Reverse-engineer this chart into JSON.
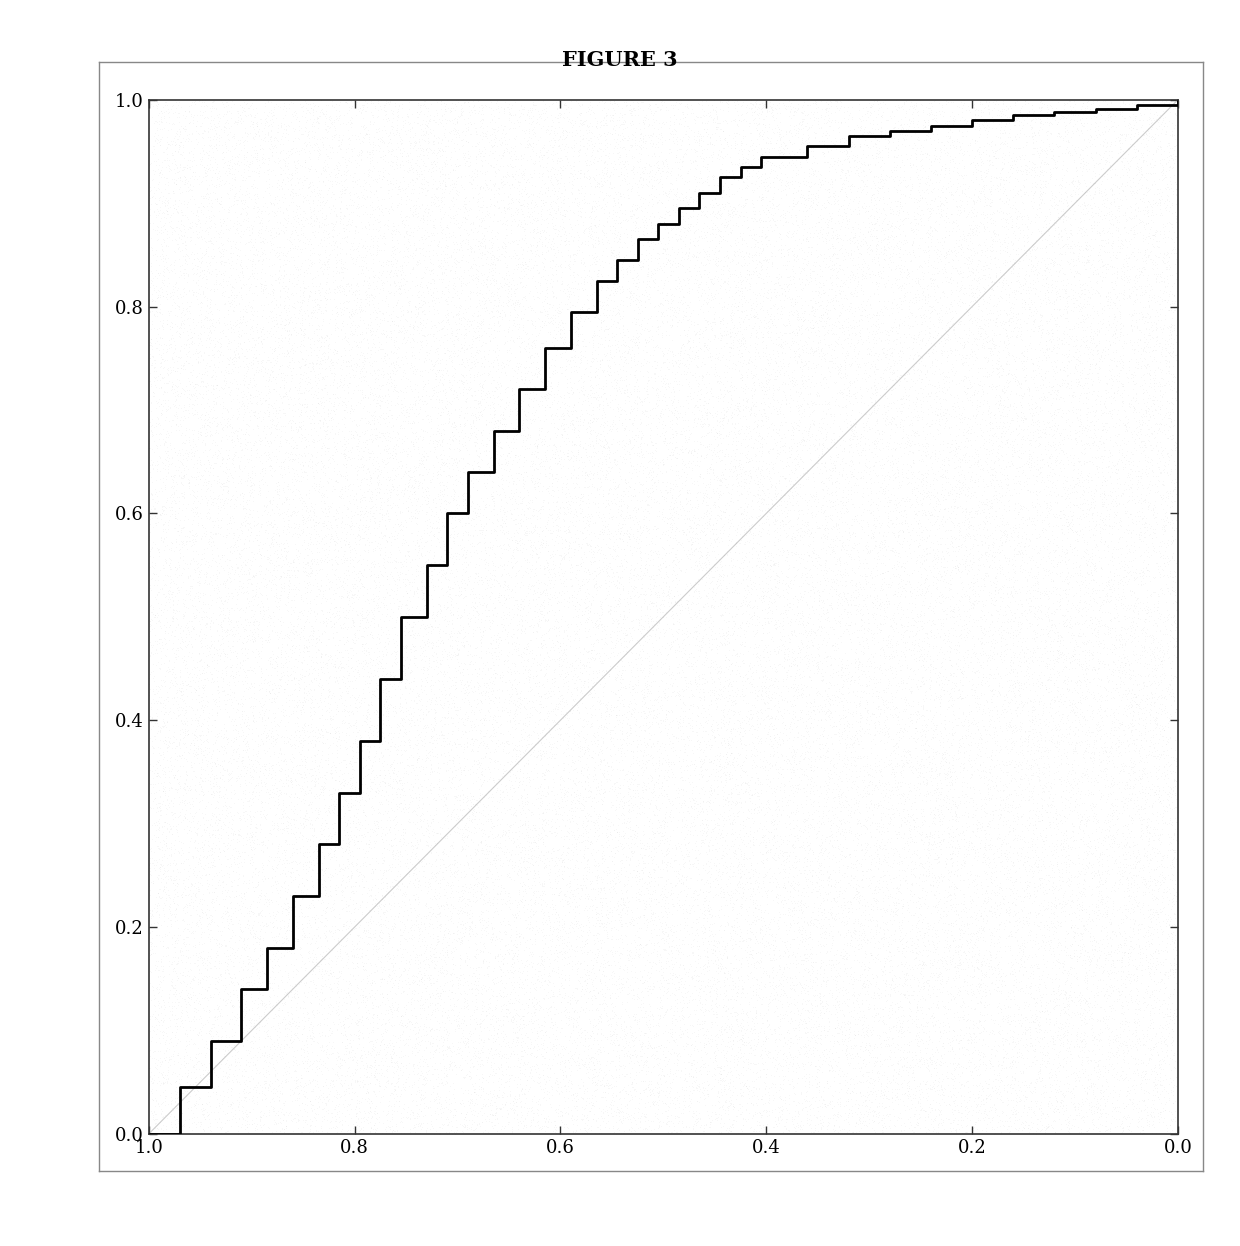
{
  "title": "FIGURE 3",
  "title_fontsize": 15,
  "title_fontweight": "bold",
  "xlim": [
    1.0,
    0.0
  ],
  "ylim": [
    0.0,
    1.0
  ],
  "xticks": [
    1.0,
    0.8,
    0.6,
    0.4,
    0.2,
    0.0
  ],
  "yticks": [
    0.0,
    0.2,
    0.4,
    0.6,
    0.8,
    1.0
  ],
  "background_color": "#ffffff",
  "plot_bg_color": "#ffffff",
  "roc_color": "#000000",
  "roc_linewidth": 2.0,
  "diag_color": "#aaaaaa",
  "diag_linewidth": 0.8,
  "dot_color": "#999999",
  "dot_density": 80000,
  "roc_x": [
    1.0,
    0.97,
    0.94,
    0.91,
    0.885,
    0.86,
    0.835,
    0.815,
    0.795,
    0.775,
    0.755,
    0.73,
    0.71,
    0.69,
    0.665,
    0.64,
    0.615,
    0.59,
    0.565,
    0.545,
    0.525,
    0.505,
    0.485,
    0.465,
    0.445,
    0.425,
    0.405,
    0.36,
    0.32,
    0.28,
    0.24,
    0.2,
    0.16,
    0.12,
    0.08,
    0.04,
    0.0
  ],
  "roc_y": [
    0.0,
    0.045,
    0.09,
    0.14,
    0.18,
    0.23,
    0.28,
    0.33,
    0.38,
    0.44,
    0.5,
    0.55,
    0.6,
    0.64,
    0.68,
    0.72,
    0.76,
    0.795,
    0.825,
    0.845,
    0.865,
    0.88,
    0.895,
    0.91,
    0.925,
    0.935,
    0.945,
    0.955,
    0.965,
    0.97,
    0.975,
    0.98,
    0.985,
    0.988,
    0.991,
    0.995,
    1.0
  ]
}
